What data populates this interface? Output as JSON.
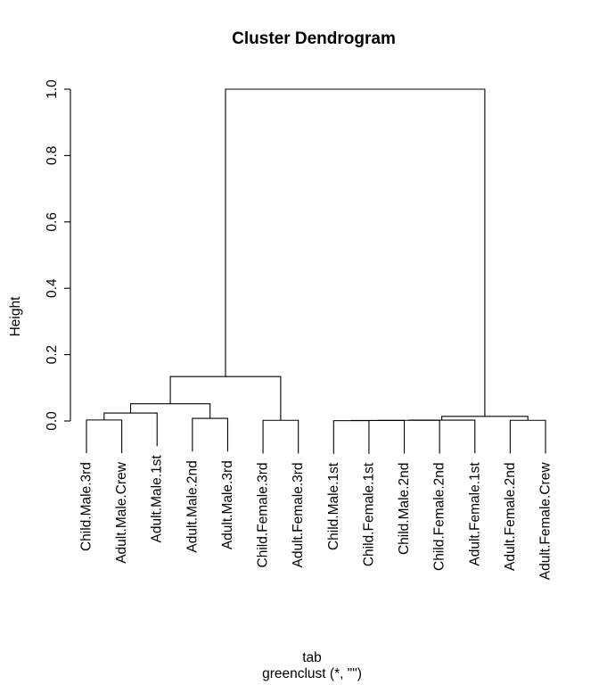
{
  "chart_data": {
    "type": "dendrogram",
    "title": "Cluster Dendrogram",
    "ylabel": "Height",
    "xlabel_lines": [
      "tab",
      "greenclust (*, \"\")"
    ],
    "yticks": [
      0.0,
      0.2,
      0.4,
      0.6,
      0.8,
      1.0
    ],
    "ylim": [
      0,
      1
    ],
    "hang": 0.1,
    "line_color": "#000000",
    "background": "#ffffff",
    "leaves": [
      "Child.Male.3rd",
      "Adult.Male.Crew",
      "Adult.Male.1st",
      "Adult.Male.2nd",
      "Adult.Male.3rd",
      "Child.Female.3rd",
      "Adult.Female.3rd",
      "Child.Male.1st",
      "Child.Female.1st",
      "Child.Male.2nd",
      "Child.Female.2nd",
      "Adult.Female.1st",
      "Adult.Female.2nd",
      "Adult.Female.Crew"
    ],
    "merges": [
      {
        "id": "A",
        "left": "L0",
        "right": "L1",
        "height": 0.003
      },
      {
        "id": "B",
        "left": "A",
        "right": "L2",
        "height": 0.024
      },
      {
        "id": "C",
        "left": "L3",
        "right": "L4",
        "height": 0.008
      },
      {
        "id": "D",
        "left": "B",
        "right": "C",
        "height": 0.052
      },
      {
        "id": "E",
        "left": "L5",
        "right": "L6",
        "height": 0.002
      },
      {
        "id": "F",
        "left": "D",
        "right": "E",
        "height": 0.134
      },
      {
        "id": "G",
        "left": "L7",
        "right": "L8",
        "height": 0.001
      },
      {
        "id": "H",
        "left": "G",
        "right": "L9",
        "height": 0.0015
      },
      {
        "id": "I",
        "left": "H",
        "right": "L10",
        "height": 0.002
      },
      {
        "id": "J",
        "left": "I",
        "right": "L11",
        "height": 0.0025
      },
      {
        "id": "K",
        "left": "L12",
        "right": "L13",
        "height": 0.002
      },
      {
        "id": "M",
        "left": "J",
        "right": "K",
        "height": 0.014
      },
      {
        "id": "R",
        "left": "F",
        "right": "M",
        "height": 1.0
      }
    ]
  }
}
